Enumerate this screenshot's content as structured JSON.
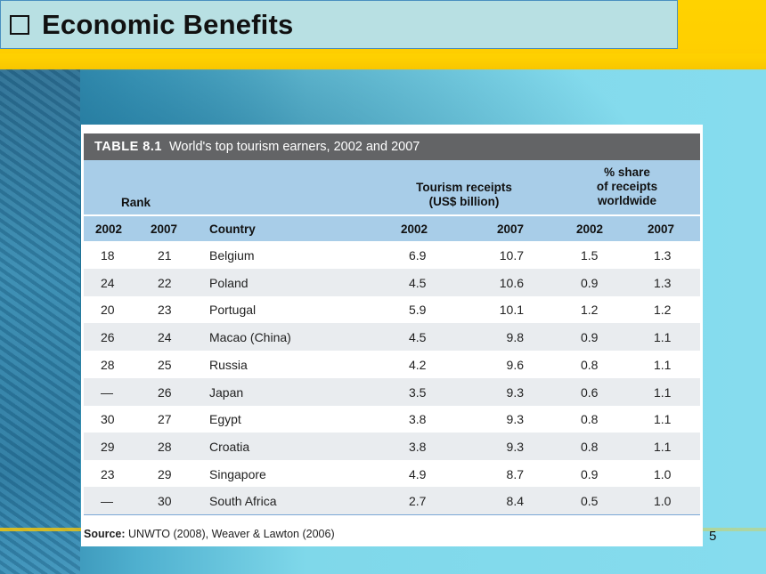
{
  "slide": {
    "title": "Economic Benefits",
    "page_number": "5"
  },
  "table": {
    "caption_label": "TABLE 8.1",
    "caption_text": "World's top tourism earners, 2002 and 2007",
    "headers": {
      "rank": "Rank",
      "receipts_line1": "Tourism receipts",
      "receipts_line2": "(US$ billion)",
      "share_line1": "% share",
      "share_line2": "of receipts",
      "share_line3": "worldwide",
      "sub": [
        "2002",
        "2007",
        "Country",
        "2002",
        "2007",
        "2002",
        "2007"
      ]
    },
    "rows": [
      [
        "18",
        "21",
        "Belgium",
        "6.9",
        "10.7",
        "1.5",
        "1.3"
      ],
      [
        "24",
        "22",
        "Poland",
        "4.5",
        "10.6",
        "0.9",
        "1.3"
      ],
      [
        "20",
        "23",
        "Portugal",
        "5.9",
        "10.1",
        "1.2",
        "1.2"
      ],
      [
        "26",
        "24",
        "Macao (China)",
        "4.5",
        "9.8",
        "0.9",
        "1.1"
      ],
      [
        "28",
        "25",
        "Russia",
        "4.2",
        "9.6",
        "0.8",
        "1.1"
      ],
      [
        "—",
        "26",
        "Japan",
        "3.5",
        "9.3",
        "0.6",
        "1.1"
      ],
      [
        "30",
        "27",
        "Egypt",
        "3.8",
        "9.3",
        "0.8",
        "1.1"
      ],
      [
        "29",
        "28",
        "Croatia",
        "3.8",
        "9.3",
        "0.8",
        "1.1"
      ],
      [
        "23",
        "29",
        "Singapore",
        "4.9",
        "8.7",
        "0.9",
        "1.0"
      ],
      [
        "—",
        "30",
        "South Africa",
        "2.7",
        "8.4",
        "0.5",
        "1.0"
      ]
    ],
    "source_label": "Source:",
    "source_text": "UNWTO (2008), Weaver & Lawton (2006)"
  },
  "colors": {
    "header_band": "#ffd200",
    "title_box": "#b8e0e3",
    "caption_bg": "#636466",
    "table_header": "#a8cde8",
    "alt_row": "#e9ecef"
  },
  "icons": {
    "title_bullet": "checkbox-icon"
  }
}
